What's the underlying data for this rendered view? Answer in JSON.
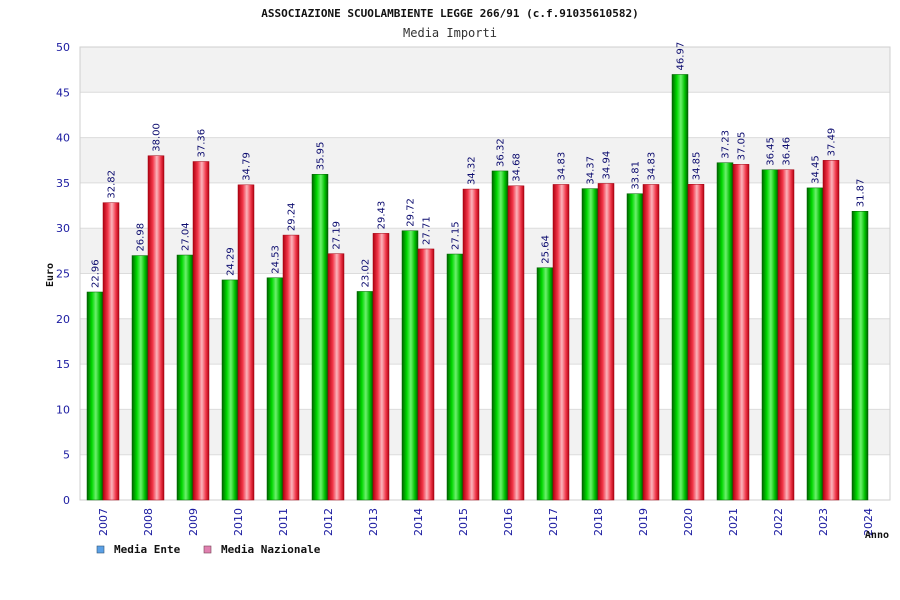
{
  "chart_data": {
    "type": "bar",
    "title": "ASSOCIAZIONE SCUOLAMBIENTE LEGGE 266/91 (c.f.91035610582)",
    "subtitle": "Media Importi",
    "xlabel": "Anno",
    "ylabel": "Euro",
    "ylim": [
      0,
      50
    ],
    "yticks": [
      0,
      5,
      10,
      15,
      20,
      25,
      30,
      35,
      40,
      45,
      50
    ],
    "grid": true,
    "legend_position": "bottom-left",
    "categories": [
      "2007",
      "2008",
      "2009",
      "2010",
      "2011",
      "2012",
      "2013",
      "2014",
      "2015",
      "2016",
      "2017",
      "2018",
      "2019",
      "2020",
      "2021",
      "2022",
      "2023",
      "2024"
    ],
    "series": [
      {
        "name": "Media Ente",
        "color": "#00b400",
        "legend_color": "#5aa0e6",
        "values": [
          22.96,
          26.98,
          27.04,
          24.29,
          24.53,
          35.95,
          23.02,
          29.72,
          27.15,
          36.32,
          25.64,
          34.37,
          33.81,
          46.97,
          37.23,
          36.45,
          34.45,
          31.87
        ],
        "labels": [
          "22.96",
          "26.98",
          "27.04",
          "24.29",
          "24.53",
          "35.95",
          "23.02",
          "29.72",
          "27.15",
          "36.32",
          "25.64",
          "34.37",
          "33.81",
          "46.97",
          "37.23",
          "36.45",
          "34.45",
          "31.87"
        ]
      },
      {
        "name": "Media Nazionale",
        "color": "#e01b2e",
        "legend_color": "#e080b0",
        "values": [
          32.82,
          38.0,
          37.36,
          34.79,
          29.24,
          27.19,
          29.43,
          27.71,
          34.32,
          34.68,
          34.83,
          34.94,
          34.83,
          34.85,
          37.05,
          36.46,
          37.49,
          null
        ],
        "labels": [
          "32.82",
          "38.00",
          "37.36",
          "34.79",
          "29.24",
          "27.19",
          "29.43",
          "27.71",
          "34.32",
          "34.68",
          "34.83",
          "34.94",
          "34.83",
          "34.85",
          "37.05",
          "36.46",
          "37.49",
          null
        ]
      }
    ]
  }
}
